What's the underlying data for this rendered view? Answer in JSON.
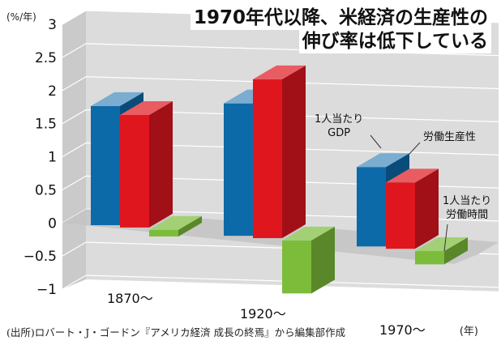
{
  "headline": [
    "1970年代以降、米経済の生産性の",
    "伸び率は低下している"
  ],
  "y_unit": "(%/年)",
  "x_unit": "(年)",
  "source": "(出所)ロバート・J・ゴードン『アメリカ経済 成長の終焉』から編集部作成",
  "legend": {
    "gdp": [
      "1人当たり",
      "GDP"
    ],
    "labor": [
      "労働生産性"
    ],
    "hours": [
      "1人当たり",
      "労働時間"
    ]
  },
  "colors": {
    "gdp": "#0d6aa8",
    "labor": "#e0161e",
    "hours": "#7cbc3a",
    "wall": "#dcdcdc",
    "floor": "#c4c4c4"
  },
  "chart_data": {
    "type": "bar",
    "categories": [
      "1870〜",
      "1920〜",
      "1970〜"
    ],
    "series": [
      {
        "name": "1人当たりGDP",
        "values": [
          1.8,
          2.0,
          1.2
        ]
      },
      {
        "name": "労働生産性",
        "values": [
          1.7,
          2.4,
          1.0
        ]
      },
      {
        "name": "1人当たり労働時間",
        "values": [
          -0.1,
          -0.8,
          -0.2
        ]
      }
    ],
    "ylim": [
      -1,
      3
    ],
    "yticks": [
      "3",
      "2.5",
      "2",
      "1.5",
      "1",
      "0.5",
      "0",
      "−0.5",
      "−1"
    ],
    "grid": true
  }
}
